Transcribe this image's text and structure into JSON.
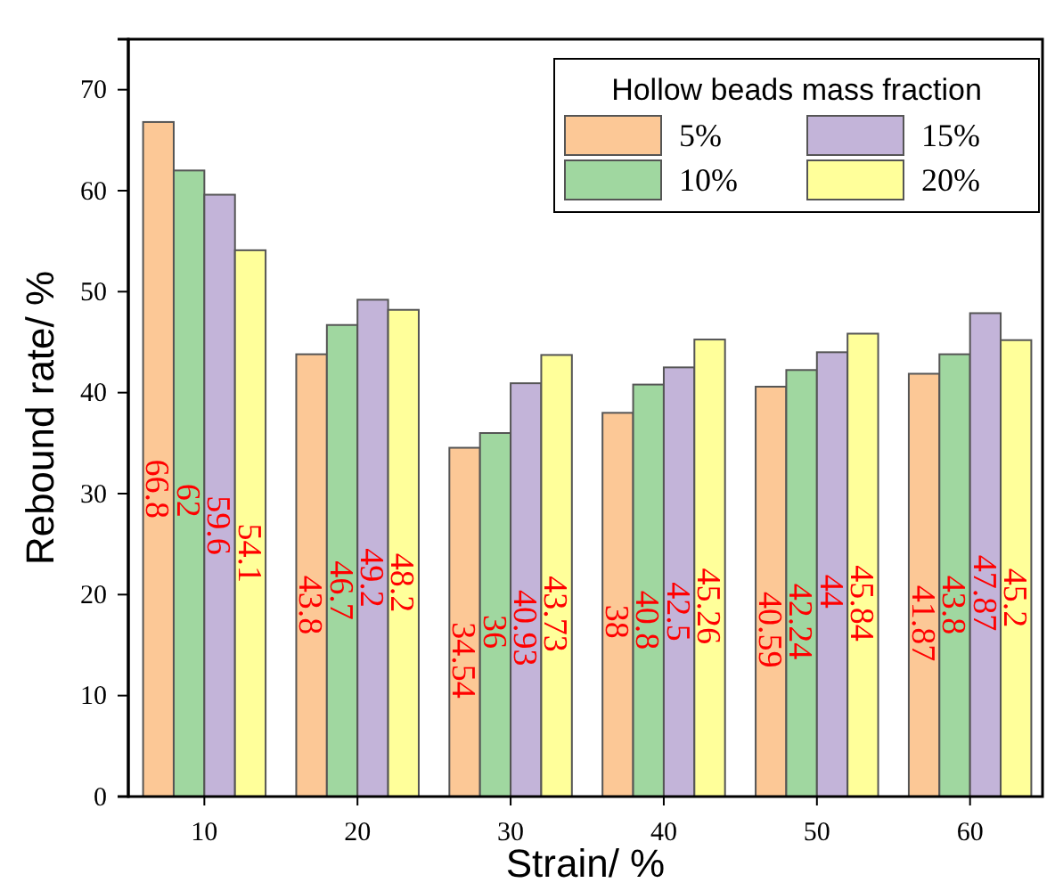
{
  "chart_data": {
    "type": "bar",
    "xlabel": "Strain/ %",
    "ylabel": "Rebound rate/ %",
    "legend_title": "Hollow beads mass fraction",
    "legend": "top right",
    "data_labels": true,
    "categories": [
      "10",
      "20",
      "30",
      "40",
      "50",
      "60"
    ],
    "ylim": [
      0,
      75
    ],
    "yticks": [
      0,
      10,
      20,
      30,
      40,
      50,
      60,
      70
    ],
    "series": [
      {
        "name": "5%",
        "color": "#fcc896",
        "values": [
          66.8,
          43.8,
          34.54,
          38,
          40.59,
          41.87
        ]
      },
      {
        "name": "10%",
        "color": "#a0d7a0",
        "values": [
          62,
          46.7,
          36,
          40.8,
          42.24,
          43.8
        ]
      },
      {
        "name": "15%",
        "color": "#c3b4d9",
        "values": [
          59.6,
          49.2,
          40.93,
          42.5,
          44,
          47.87
        ]
      },
      {
        "name": "20%",
        "color": "#ffff9a",
        "values": [
          54.1,
          48.2,
          43.73,
          45.26,
          45.84,
          45.2
        ]
      }
    ]
  }
}
